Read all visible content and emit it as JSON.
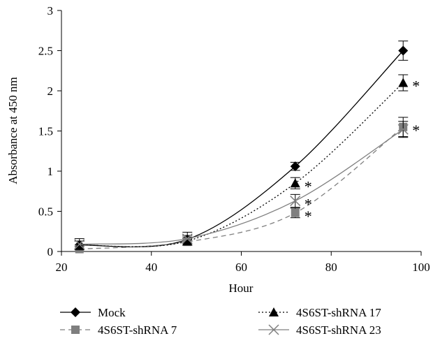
{
  "chart_data": {
    "type": "line",
    "title": "",
    "xlabel": "Hour",
    "ylabel": "Absorbance at 450 nm",
    "xlim": [
      20,
      100
    ],
    "ylim": [
      0,
      3
    ],
    "x_ticks": [
      20,
      40,
      60,
      80,
      100
    ],
    "y_ticks": [
      0,
      0.5,
      1,
      1.5,
      2,
      2.5,
      3
    ],
    "x_tick_labels": [
      "20",
      "40",
      "60",
      "80",
      "100"
    ],
    "y_tick_labels": [
      "0",
      "0.5",
      "1",
      "1.5",
      "2",
      "2.5",
      "3"
    ],
    "grid": false,
    "legend_position": "bottom",
    "x": [
      24,
      48,
      72,
      96
    ],
    "series": [
      {
        "name": "Mock",
        "marker": "diamond",
        "line": "solid",
        "color": "#000000",
        "values": [
          0.08,
          0.15,
          1.06,
          2.5
        ],
        "errors": [
          0.05,
          0.05,
          0.05,
          0.12
        ],
        "significance": [
          "",
          "",
          "",
          ""
        ]
      },
      {
        "name": "4S6ST-shRNA 7",
        "marker": "square",
        "line": "dashed",
        "color": "#7f7f7f",
        "values": [
          0.03,
          0.12,
          0.48,
          1.55
        ],
        "errors": [
          0.03,
          0.04,
          0.06,
          0.12
        ],
        "significance": [
          "",
          "",
          "*",
          "*"
        ]
      },
      {
        "name": "4S6ST-shRNA 17",
        "marker": "triangle",
        "line": "dotted",
        "color": "#000000",
        "values": [
          0.08,
          0.13,
          0.85,
          2.1
        ],
        "errors": [
          0.05,
          0.05,
          0.07,
          0.1
        ],
        "significance": [
          "",
          "",
          "*",
          "*"
        ]
      },
      {
        "name": "4S6ST-shRNA 23",
        "marker": "x",
        "line": "solid",
        "color": "#7f7f7f",
        "values": [
          0.09,
          0.16,
          0.63,
          1.52
        ],
        "errors": [
          0.07,
          0.08,
          0.08,
          0.1
        ],
        "significance": [
          "",
          "",
          "*",
          ""
        ]
      }
    ]
  }
}
